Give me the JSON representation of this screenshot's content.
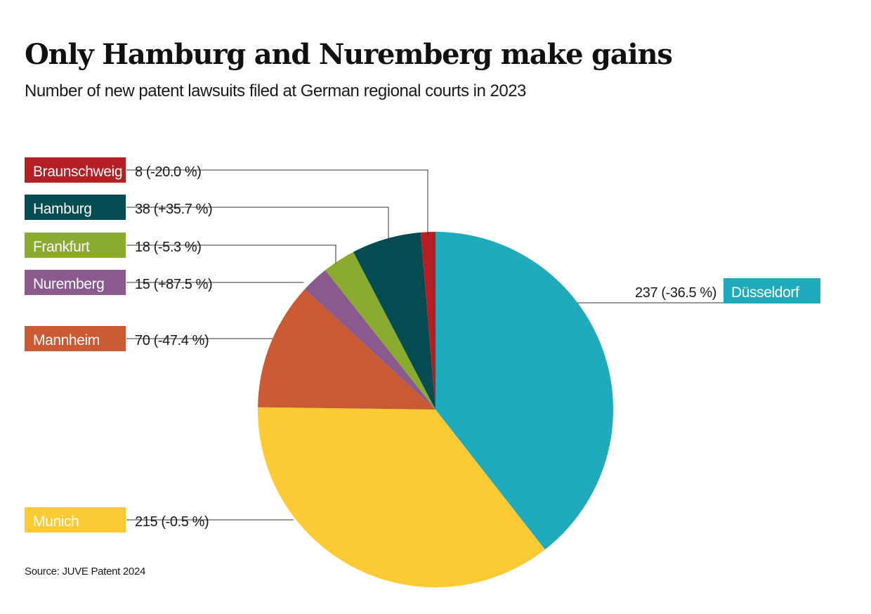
{
  "title": "Only Hamburg and Nuremberg make gains",
  "subtitle": "Number of new patent lawsuits filed at German regional courts in 2023",
  "source": "Source: JUVE Patent 2024",
  "chart_data": {
    "type": "pie",
    "start_angle": "12 o'clock, clockwise",
    "slices": [
      {
        "name": "Düsseldorf",
        "value": 237,
        "change": "-36.5 %",
        "label": "237 (-36.5 %)",
        "color": "#1fabbb"
      },
      {
        "name": "Munich",
        "value": 215,
        "change": "-0.5 %",
        "label": "215 (-0.5 %)",
        "color": "#fcca32"
      },
      {
        "name": "Mannheim",
        "value": 70,
        "change": "-47.4 %",
        "label": "70 (-47.4 %)",
        "color": "#ca5a33"
      },
      {
        "name": "Nuremberg",
        "value": 15,
        "change": "+87.5 %",
        "label": "15 (+87.5 %)",
        "color": "#8a5a8e"
      },
      {
        "name": "Frankfurt",
        "value": 18,
        "change": "-5.3 %",
        "label": "18 (-5.3 %)",
        "color": "#8aaa30"
      },
      {
        "name": "Hamburg",
        "value": 38,
        "change": "+35.7 %",
        "label": "38 (+35.7 %)",
        "color": "#044b52"
      },
      {
        "name": "Braunschweig",
        "value": 8,
        "change": "-20.0 %",
        "label": "8 (-20.0 %)",
        "color": "#b51e23"
      }
    ]
  }
}
